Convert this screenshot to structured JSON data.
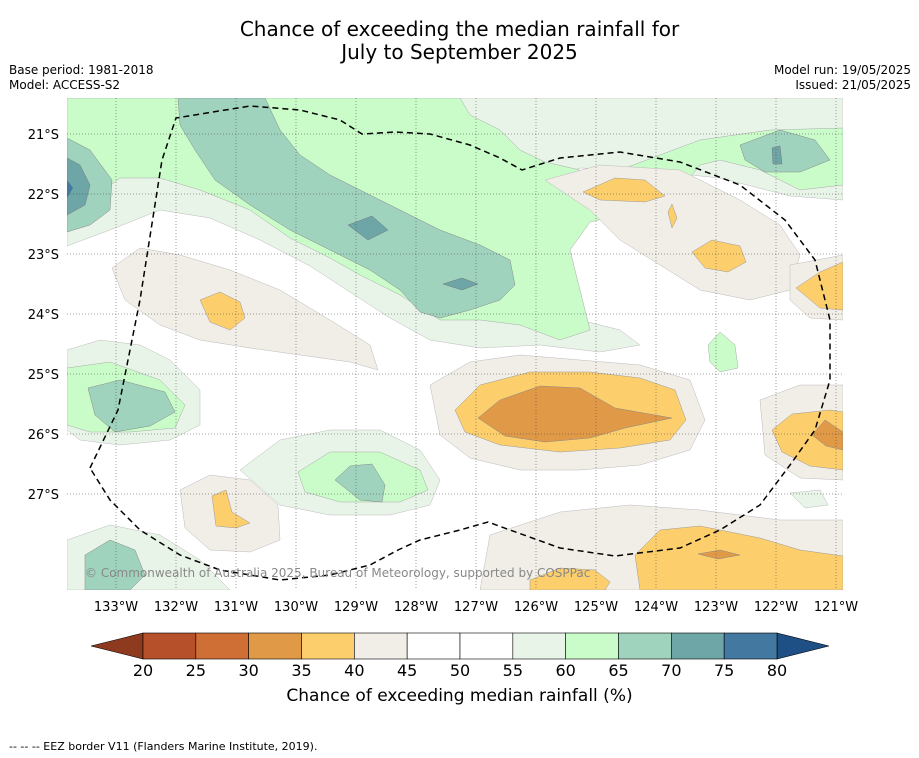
{
  "title_line1": "Chance of exceeding the median rainfall for",
  "title_line2": "July to September 2025",
  "base_period": "Base period: 1981-2018",
  "model": "Model: ACCESS-S2",
  "model_run": "Model run: 19/05/2025",
  "issued": "Issued: 21/05/2025",
  "copyright": "© Commonwealth of Australia 2025, Bureau of Meteorology, supported by COSPPac",
  "lat_labels": [
    "21°S",
    "22°S",
    "23°S",
    "24°S",
    "25°S",
    "26°S",
    "27°S"
  ],
  "lon_labels": [
    "133°W",
    "132°W",
    "131°W",
    "130°W",
    "129°W",
    "128°W",
    "127°W",
    "126°W",
    "125°W",
    "124°W",
    "123°W",
    "122°W",
    "121°W"
  ],
  "colorbar": {
    "ticks": [
      "20",
      "25",
      "30",
      "35",
      "40",
      "45",
      "50",
      "55",
      "60",
      "65",
      "70",
      "75",
      "80"
    ],
    "colors": [
      "#b5502a",
      "#cf6f36",
      "#e09a47",
      "#fdcf6c",
      "#f1ede7",
      "#ffffff",
      "#ffffff",
      "#e9f4e8",
      "#c9fcc9",
      "#9fd3bd",
      "#6ea5a7",
      "#4379a0"
    ],
    "under_color": "#8e3a1e",
    "over_color": "#1e4f85",
    "label": "Chance of exceeding median rainfall (%)"
  },
  "legend_footnote": "--  --  -- EEZ border V11 (Flanders Marine Institute, 2019)."
}
